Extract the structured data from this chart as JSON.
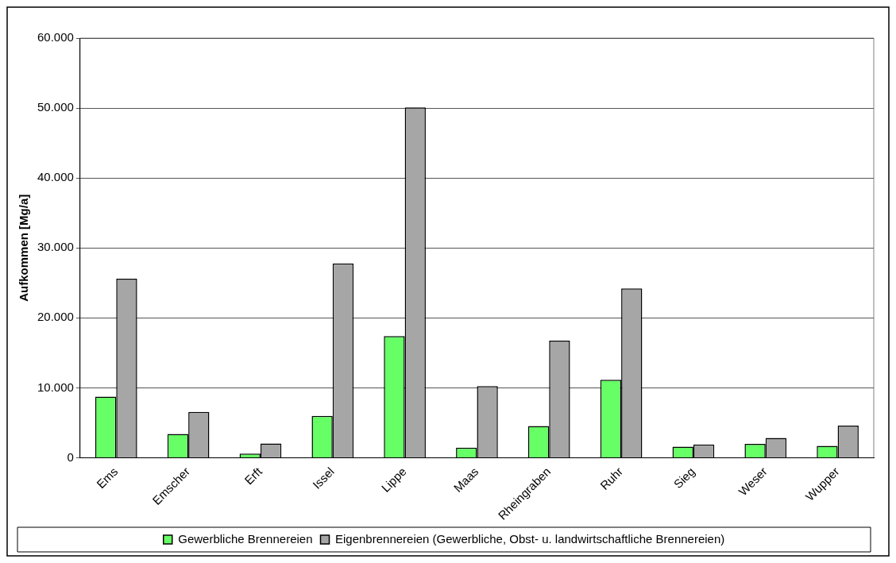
{
  "chart_data": {
    "type": "bar",
    "ylabel": "Aufkommen [Mg/a]",
    "categories": [
      "Ems",
      "Emscher",
      "Erft",
      "Issel",
      "Lippe",
      "Maas",
      "Rheingraben",
      "Ruhr",
      "Sieg",
      "Weser",
      "Wupper"
    ],
    "series": [
      {
        "name": "Gewerbliche Brennereien",
        "color": "#66ff66",
        "values": [
          8750,
          3400,
          600,
          6000,
          17400,
          1450,
          4550,
          11150,
          1600,
          2000,
          1700
        ]
      },
      {
        "name": "Eigenbrennereien (Gewerbliche, Obst- u. landwirtschaftliche Brennereien)",
        "color": "#a6a6a6",
        "values": [
          25600,
          6550,
          2050,
          27800,
          50100,
          10250,
          16750,
          24200,
          1900,
          2850,
          4600
        ]
      }
    ],
    "ylim": [
      0,
      60000
    ],
    "yticks": [
      {
        "value": 0,
        "label": "0"
      },
      {
        "value": 10000,
        "label": "10.000"
      },
      {
        "value": 20000,
        "label": "20.000"
      },
      {
        "value": 30000,
        "label": "30.000"
      },
      {
        "value": 40000,
        "label": "40.000"
      },
      {
        "value": 50000,
        "label": "50.000"
      },
      {
        "value": 60000,
        "label": "60.000"
      }
    ],
    "grid": "y",
    "legend": "bottom"
  }
}
